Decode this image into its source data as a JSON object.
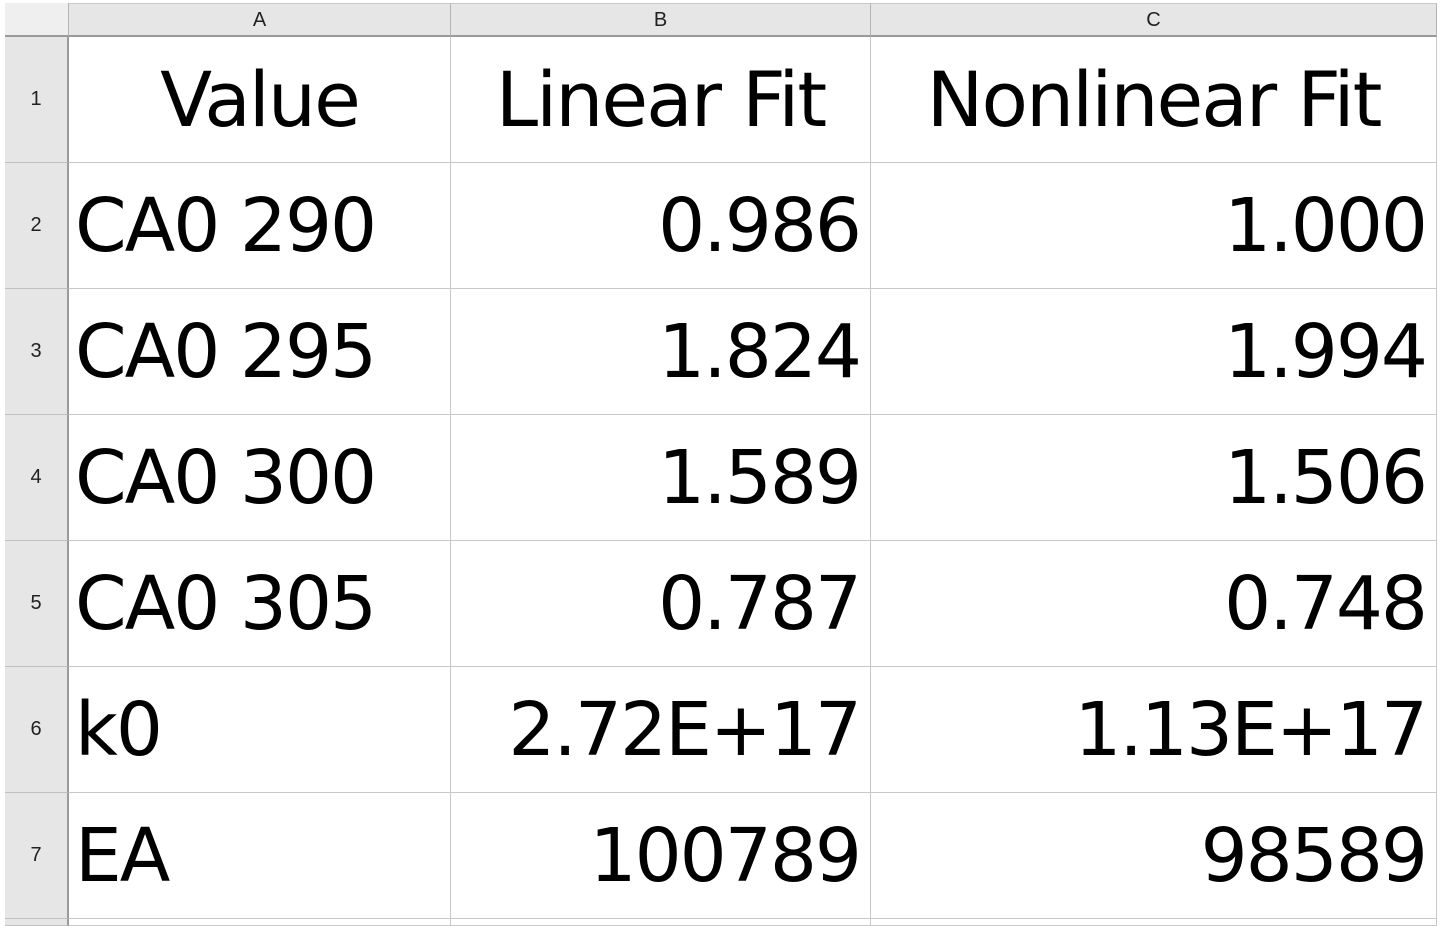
{
  "columns": [
    "A",
    "B",
    "C"
  ],
  "row_numbers": [
    "1",
    "2",
    "3",
    "4",
    "5",
    "6",
    "7"
  ],
  "rows": [
    [
      "Value",
      "Linear Fit",
      "Nonlinear Fit"
    ],
    [
      "CA0 290",
      "0.986",
      "1.000"
    ],
    [
      "CA0 295",
      "1.824",
      "1.994"
    ],
    [
      "CA0 300",
      "1.589",
      "1.506"
    ],
    [
      "CA0 305",
      "0.787",
      "0.748"
    ],
    [
      "k0",
      "2.72E+17",
      "1.13E+17"
    ],
    [
      "EA",
      "100789",
      "98589"
    ]
  ]
}
